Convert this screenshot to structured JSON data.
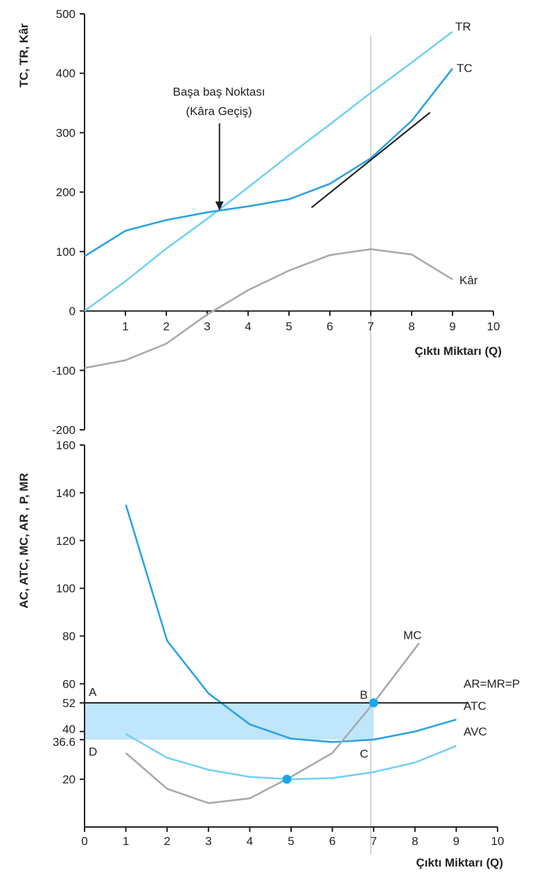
{
  "colors": {
    "axis": "#231f20",
    "tc": "#2aa2e3",
    "tr": "#73d0f5",
    "profit": "#a7a9ac",
    "tangent": "#231f20",
    "atc": "#2aa2e3",
    "avc": "#73d0f5",
    "mc": "#a7a9ac",
    "price_line": "#231f20",
    "profit_area": "#bfe6fa",
    "vertical_guide": "#d1d3d4",
    "marker": "#1aa6ec"
  },
  "chart_data": [
    {
      "type": "line",
      "panel": "top",
      "ylabel": "TC, TR, Kâr",
      "xlabel": "Çıktı Miktarı (Q)",
      "xlim": [
        0,
        10
      ],
      "ylim": [
        -200,
        500
      ],
      "x_ticks": [
        "1",
        "2",
        "3",
        "4",
        "5",
        "6",
        "7",
        "8",
        "9",
        "10"
      ],
      "y_ticks": [
        {
          "value": 500,
          "label": "500"
        },
        {
          "value": 400,
          "label": "400"
        },
        {
          "value": 300,
          "label": "300"
        },
        {
          "value": 200,
          "label": "200"
        },
        {
          "value": 100,
          "label": "100"
        },
        {
          "value": 0,
          "label": "0"
        },
        {
          "value": -100,
          "label": "-100"
        },
        {
          "value": -200,
          "label": "-200"
        }
      ],
      "series": [
        {
          "key": "tr",
          "name": "TR",
          "x": [
            0,
            1,
            2,
            3,
            4,
            5,
            6,
            7,
            8,
            9
          ],
          "y": [
            0,
            50,
            105,
            155,
            208,
            262,
            314,
            367,
            418,
            470
          ]
        },
        {
          "key": "tc",
          "name": "TC",
          "x": [
            0,
            1,
            2,
            3,
            4,
            5,
            6,
            7,
            8,
            9
          ],
          "y": [
            92,
            135,
            153,
            166,
            176,
            188,
            214,
            257,
            320,
            408
          ]
        },
        {
          "key": "profit",
          "name": "Kâr",
          "x": [
            0,
            1,
            2,
            3,
            4,
            5,
            6,
            7,
            8,
            9
          ],
          "y": [
            -96,
            -83,
            -55,
            -6,
            35,
            68,
            94,
            104,
            95,
            53
          ]
        }
      ],
      "tangent_line": {
        "x": [
          5.55,
          8.45
        ],
        "y": [
          174,
          334
        ]
      },
      "annotation": {
        "line1": "Başa baş Noktası",
        "line2": "(Kâra Geçiş)",
        "point": {
          "x": 3.3,
          "y": 168
        }
      },
      "vertical_guide_x": 7
    },
    {
      "type": "line",
      "panel": "bottom",
      "ylabel": "AC, ATC, MC, AR , P, MR",
      "xlabel": "Çıktı Miktarı (Q)",
      "xlim": [
        0,
        10
      ],
      "ylim": [
        0,
        160
      ],
      "x_ticks": [
        "0",
        "1",
        "2",
        "3",
        "4",
        "5",
        "6",
        "7",
        "8",
        "9",
        "10"
      ],
      "y_ticks": [
        {
          "value": 160,
          "label": "160"
        },
        {
          "value": 140,
          "label": "140"
        },
        {
          "value": 120,
          "label": "120"
        },
        {
          "value": 100,
          "label": "100"
        },
        {
          "value": 80,
          "label": "80"
        },
        {
          "value": 60,
          "label": "60"
        },
        {
          "value": 52,
          "label": "52"
        },
        {
          "value": 40,
          "label": "40"
        },
        {
          "value": 36.6,
          "label": "36.6"
        },
        {
          "value": 20,
          "label": "20"
        }
      ],
      "series": [
        {
          "key": "atc",
          "name": "ATC",
          "x": [
            1,
            2,
            3,
            4,
            5,
            6,
            7,
            8,
            9
          ],
          "y": [
            135,
            78,
            56,
            43,
            37,
            35.6,
            36.6,
            40,
            45
          ]
        },
        {
          "key": "avc",
          "name": "AVC",
          "x": [
            1,
            2,
            3,
            4,
            5,
            6,
            7,
            8,
            9
          ],
          "y": [
            39,
            29,
            24,
            21,
            20,
            20.5,
            23,
            27,
            34
          ]
        },
        {
          "key": "mc",
          "name": "MC",
          "x": [
            1,
            2,
            3,
            4,
            5,
            6,
            7,
            8.1
          ],
          "y": [
            31,
            16,
            10,
            12,
            21,
            31,
            52,
            77
          ]
        },
        {
          "key": "price",
          "name": "AR=MR=P",
          "x": [
            0,
            9.3
          ],
          "y": [
            52,
            52
          ]
        }
      ],
      "profit_rectangle": {
        "x": [
          0,
          7
        ],
        "y": [
          36.6,
          52
        ]
      },
      "points": [
        {
          "label": "A",
          "x": 0,
          "y": 52,
          "marker": false
        },
        {
          "label": "B",
          "x": 7,
          "y": 52,
          "marker": true
        },
        {
          "label": "C",
          "x": 7,
          "y": 36.6,
          "marker": false
        },
        {
          "label": "D",
          "x": 0,
          "y": 36.6,
          "marker": false
        }
      ],
      "avc_min_point": {
        "x": 4.9,
        "y": 20
      },
      "vertical_guide_x": 7
    }
  ]
}
